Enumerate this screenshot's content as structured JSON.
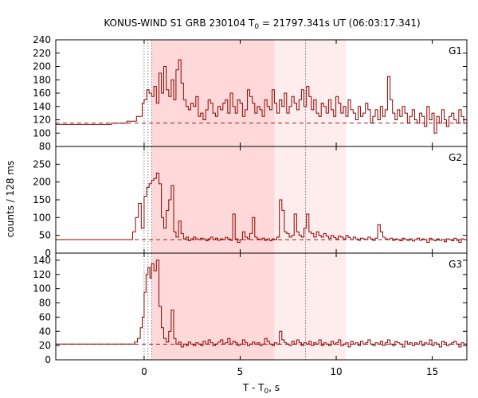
{
  "chart_data": {
    "type": "line",
    "title": {
      "prefix": "KONUS-WIND S1 GRB 230104 T",
      "sub": "0",
      "suffix": " = 21797.341s UT (06:03:17.341)"
    },
    "xlabel": {
      "prefix": "T - T",
      "sub": "0",
      "suffix": ", s"
    },
    "ylabel": "counts / 128 ms",
    "x_ticks": [
      "0",
      "5",
      "10",
      "15"
    ],
    "xlim": [
      -4.6,
      16.8
    ],
    "grid": false,
    "colors": {
      "curve": "#8b0000",
      "shade_dark": "#ffd9d9",
      "shade_light": "#ffecec",
      "marker_lines": "#666666"
    },
    "shaded_intervals": [
      {
        "from": 0.39,
        "to": 6.79,
        "shade": "dark"
      },
      {
        "from": 6.79,
        "to": 10.5,
        "shade": "light"
      }
    ],
    "marker_lines_x": [
      0.0,
      0.2,
      0.39,
      8.4
    ],
    "panels": [
      {
        "name": "G1",
        "ylim": [
          80,
          240
        ],
        "y_ticks": [
          "240",
          "220",
          "200",
          "180",
          "160",
          "140",
          "120",
          "100",
          "80"
        ],
        "background": 115,
        "x": [
          -4.6,
          -1.7,
          -0.9,
          -0.4,
          -0.1,
          0.0,
          0.13,
          0.26,
          0.38,
          0.51,
          0.64,
          0.77,
          0.9,
          1.02,
          1.15,
          1.28,
          1.41,
          1.54,
          1.66,
          1.79,
          1.92,
          2.05,
          2.18,
          2.3,
          2.43,
          2.56,
          2.69,
          2.82,
          2.94,
          3.07,
          3.2,
          3.33,
          3.46,
          3.58,
          3.71,
          3.84,
          3.97,
          4.1,
          4.22,
          4.35,
          4.48,
          4.61,
          4.74,
          4.86,
          4.99,
          5.12,
          5.25,
          5.38,
          5.5,
          5.63,
          5.76,
          5.89,
          6.02,
          6.14,
          6.27,
          6.4,
          6.53,
          6.66,
          6.78,
          6.91,
          7.04,
          7.17,
          7.3,
          7.42,
          7.55,
          7.68,
          7.81,
          7.94,
          8.06,
          8.19,
          8.32,
          8.45,
          8.58,
          8.7,
          8.83,
          8.96,
          9.09,
          9.22,
          9.34,
          9.47,
          9.6,
          9.73,
          9.86,
          9.98,
          10.11,
          10.24,
          10.37,
          10.5,
          10.62,
          10.75,
          10.88,
          11.01,
          11.14,
          11.26,
          11.39,
          11.52,
          11.65,
          11.78,
          11.9,
          12.03,
          12.16,
          12.29,
          12.42,
          12.54,
          12.67,
          12.8,
          12.93,
          13.06,
          13.18,
          13.31,
          13.44,
          13.57,
          13.7,
          13.82,
          13.95,
          14.08,
          14.21,
          14.34,
          14.46,
          14.59,
          14.72,
          14.85,
          14.98,
          15.1,
          15.23,
          15.36,
          15.49,
          15.62,
          15.74,
          15.87,
          16.0,
          16.13,
          16.26,
          16.38,
          16.51,
          16.64
        ],
        "y": [
          113,
          115,
          118,
          125,
          145,
          150,
          165,
          160,
          155,
          170,
          145,
          190,
          160,
          200,
          165,
          155,
          180,
          150,
          195,
          210,
          175,
          150,
          140,
          135,
          145,
          140,
          155,
          125,
          130,
          120,
          135,
          150,
          145,
          130,
          125,
          140,
          135,
          145,
          150,
          130,
          160,
          140,
          130,
          150,
          145,
          125,
          135,
          165,
          155,
          145,
          130,
          140,
          135,
          125,
          150,
          140,
          135,
          165,
          145,
          130,
          150,
          140,
          160,
          130,
          140,
          155,
          145,
          135,
          150,
          165,
          140,
          170,
          155,
          135,
          150,
          130,
          125,
          145,
          140,
          130,
          150,
          135,
          125,
          155,
          145,
          130,
          140,
          125,
          150,
          135,
          130,
          120,
          140,
          125,
          130,
          145,
          135,
          115,
          125,
          135,
          120,
          140,
          125,
          135,
          185,
          150,
          130,
          120,
          135,
          125,
          140,
          130,
          115,
          125,
          135,
          120,
          115,
          130,
          125,
          110,
          140,
          120,
          130,
          100,
          125,
          115,
          135,
          120,
          110,
          125,
          130,
          120,
          115,
          135,
          125,
          115
        ]
      },
      {
        "name": "G2",
        "ylim": [
          0,
          300
        ],
        "y_ticks": [
          "250",
          "200",
          "150",
          "100",
          "50",
          "0"
        ],
        "background": 38,
        "x": [
          -4.6,
          -0.6,
          -0.45,
          -0.3,
          -0.15,
          0.0,
          0.13,
          0.26,
          0.38,
          0.51,
          0.64,
          0.77,
          0.9,
          1.02,
          1.15,
          1.28,
          1.41,
          1.54,
          1.66,
          1.79,
          1.92,
          2.05,
          2.18,
          2.3,
          2.43,
          2.56,
          2.69,
          2.82,
          2.94,
          3.07,
          3.2,
          3.33,
          3.46,
          3.58,
          3.71,
          3.84,
          3.97,
          4.1,
          4.22,
          4.35,
          4.48,
          4.61,
          4.74,
          4.86,
          4.99,
          5.12,
          5.25,
          5.38,
          5.5,
          5.63,
          5.76,
          5.89,
          6.02,
          6.14,
          6.27,
          6.4,
          6.53,
          6.66,
          6.78,
          6.91,
          7.04,
          7.17,
          7.3,
          7.42,
          7.55,
          7.68,
          7.81,
          7.94,
          8.06,
          8.19,
          8.32,
          8.45,
          8.58,
          8.7,
          8.83,
          8.96,
          9.09,
          9.22,
          9.34,
          9.47,
          9.6,
          9.73,
          9.86,
          9.98,
          10.11,
          10.24,
          10.37,
          10.5,
          10.62,
          10.75,
          10.88,
          11.01,
          11.14,
          11.26,
          11.39,
          11.52,
          11.65,
          11.78,
          11.9,
          12.03,
          12.16,
          12.29,
          12.42,
          12.54,
          12.67,
          12.8,
          12.93,
          13.06,
          13.18,
          13.31,
          13.44,
          13.57,
          13.7,
          13.82,
          13.95,
          14.08,
          14.21,
          14.34,
          14.46,
          14.59,
          14.72,
          14.85,
          14.98,
          15.1,
          15.23,
          15.36,
          15.49,
          15.62,
          15.74,
          15.87,
          16.0,
          16.13,
          16.26,
          16.38,
          16.51,
          16.64
        ],
        "y": [
          38,
          60,
          100,
          140,
          70,
          160,
          185,
          195,
          205,
          210,
          225,
          195,
          100,
          70,
          120,
          150,
          190,
          60,
          45,
          90,
          55,
          40,
          45,
          35,
          40,
          45,
          40,
          38,
          42,
          40,
          35,
          40,
          45,
          38,
          42,
          36,
          40,
          38,
          44,
          40,
          36,
          110,
          40,
          30,
          38,
          60,
          45,
          40,
          55,
          100,
          45,
          40,
          38,
          42,
          36,
          40,
          35,
          40,
          38,
          45,
          150,
          120,
          60,
          55,
          45,
          50,
          110,
          60,
          50,
          45,
          70,
          110,
          60,
          55,
          45,
          60,
          50,
          45,
          55,
          48,
          42,
          50,
          44,
          40,
          48,
          45,
          40,
          50,
          44,
          38,
          45,
          40,
          36,
          42,
          40,
          38,
          45,
          40,
          36,
          42,
          80,
          60,
          45,
          40,
          38,
          42,
          36,
          40,
          38,
          35,
          42,
          38,
          36,
          40,
          34,
          38,
          42,
          36,
          40,
          38,
          30,
          42,
          38,
          35,
          40,
          36,
          38,
          32,
          40,
          38,
          35,
          42,
          36,
          30,
          40,
          38
        ]
      },
      {
        "name": "G3",
        "ylim": [
          0,
          150
        ],
        "y_ticks": [
          "140",
          "120",
          "100",
          "80",
          "60",
          "40",
          "20",
          "0"
        ],
        "background": 22,
        "x": [
          -4.6,
          -0.5,
          -0.35,
          -0.2,
          -0.1,
          0.0,
          0.1,
          0.2,
          0.3,
          0.38,
          0.51,
          0.64,
          0.77,
          0.9,
          1.02,
          1.15,
          1.28,
          1.41,
          1.54,
          1.66,
          1.79,
          1.92,
          2.05,
          2.18,
          2.3,
          2.43,
          2.56,
          2.69,
          2.82,
          2.94,
          3.07,
          3.2,
          3.33,
          3.46,
          3.58,
          3.71,
          3.84,
          3.97,
          4.1,
          4.22,
          4.35,
          4.48,
          4.61,
          4.74,
          4.86,
          4.99,
          5.12,
          5.25,
          5.38,
          5.5,
          5.63,
          5.76,
          5.89,
          6.02,
          6.14,
          6.27,
          6.4,
          6.53,
          6.66,
          6.78,
          6.91,
          7.04,
          7.17,
          7.3,
          7.42,
          7.55,
          7.68,
          7.81,
          7.94,
          8.06,
          8.19,
          8.32,
          8.45,
          8.58,
          8.7,
          8.83,
          8.96,
          9.09,
          9.22,
          9.34,
          9.47,
          9.6,
          9.73,
          9.86,
          9.98,
          10.11,
          10.24,
          10.37,
          10.5,
          10.62,
          10.75,
          10.88,
          11.01,
          11.14,
          11.26,
          11.39,
          11.52,
          11.65,
          11.78,
          11.9,
          12.03,
          12.16,
          12.29,
          12.42,
          12.54,
          12.67,
          12.8,
          12.93,
          13.06,
          13.18,
          13.31,
          13.44,
          13.57,
          13.7,
          13.82,
          13.95,
          14.08,
          14.21,
          14.34,
          14.46,
          14.59,
          14.72,
          14.85,
          14.98,
          15.1,
          15.23,
          15.36,
          15.49,
          15.62,
          15.74,
          15.87,
          16.0,
          16.13,
          16.26,
          16.38,
          16.51,
          16.64
        ],
        "y": [
          22,
          25,
          30,
          45,
          60,
          95,
          120,
          130,
          115,
          135,
          125,
          140,
          75,
          45,
          30,
          25,
          40,
          70,
          30,
          22,
          25,
          18,
          22,
          20,
          25,
          22,
          20,
          24,
          22,
          20,
          26,
          22,
          28,
          24,
          20,
          22,
          25,
          28,
          22,
          24,
          30,
          22,
          26,
          24,
          20,
          22,
          28,
          24,
          20,
          22,
          25,
          22,
          24,
          20,
          22,
          30,
          26,
          22,
          20,
          24,
          22,
          40,
          28,
          24,
          22,
          20,
          26,
          22,
          28,
          24,
          20,
          24,
          22,
          26,
          20,
          24,
          22,
          28,
          20,
          24,
          22,
          20,
          26,
          22,
          24,
          28,
          20,
          22,
          24,
          18,
          26,
          22,
          24,
          20,
          26,
          22,
          24,
          28,
          22,
          20,
          24,
          22,
          26,
          20,
          24,
          28,
          22,
          20,
          26,
          24,
          22,
          18,
          26,
          22,
          24,
          20,
          24,
          22,
          26,
          20,
          24,
          22,
          28,
          20,
          24,
          22,
          18,
          26,
          24,
          20,
          22,
          24,
          26,
          22,
          18,
          24,
          22
        ]
      }
    ]
  }
}
